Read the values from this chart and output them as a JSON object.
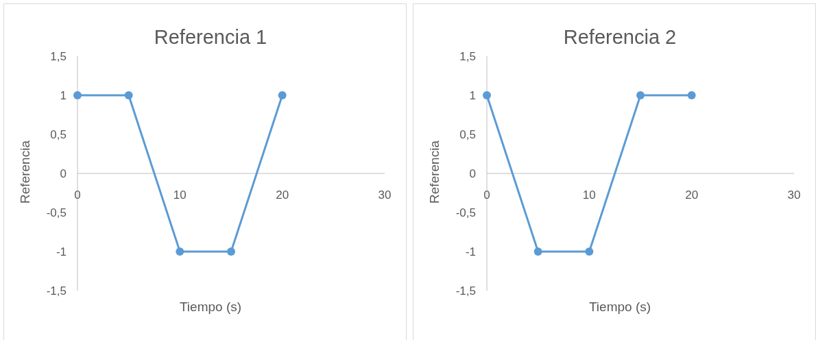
{
  "chart_data": [
    {
      "type": "line",
      "title": "Referencia 1",
      "xlabel": "Tiempo (s)",
      "ylabel": "Referencia",
      "x": [
        0,
        5,
        10,
        15,
        20
      ],
      "series": [
        {
          "color": "#5b9bd5",
          "values": [
            1,
            1,
            -1,
            -1,
            1
          ]
        }
      ],
      "xlim": [
        0,
        30
      ],
      "xticks": [
        0,
        10,
        20,
        30
      ],
      "ylim": [
        -1.5,
        1.5
      ],
      "yticks": [
        {
          "value": -1.5,
          "label": "-1,5"
        },
        -1,
        {
          "value": -0.5,
          "label": "-0,5"
        },
        0,
        {
          "value": 0.5,
          "label": "0,5"
        },
        1,
        {
          "value": 1.5,
          "label": "1,5"
        }
      ],
      "grid": false,
      "marker": "circle",
      "line_style": "solid"
    },
    {
      "type": "line",
      "title": "Referencia 2",
      "xlabel": "Tiempo (s)",
      "ylabel": "Referencia",
      "x": [
        0,
        5,
        10,
        15,
        20
      ],
      "series": [
        {
          "color": "#5b9bd5",
          "values": [
            1,
            -1,
            -1,
            1,
            1
          ]
        }
      ],
      "xlim": [
        0,
        30
      ],
      "xticks": [
        0,
        10,
        20,
        30
      ],
      "ylim": [
        -1.5,
        1.5
      ],
      "yticks": [
        {
          "value": -1.5,
          "label": "-1,5"
        },
        -1,
        {
          "value": -0.5,
          "label": "-0,5"
        },
        0,
        {
          "value": 0.5,
          "label": "0,5"
        },
        1,
        {
          "value": 1.5,
          "label": "1,5"
        }
      ],
      "grid": false,
      "marker": "circle",
      "line_style": "solid"
    }
  ]
}
